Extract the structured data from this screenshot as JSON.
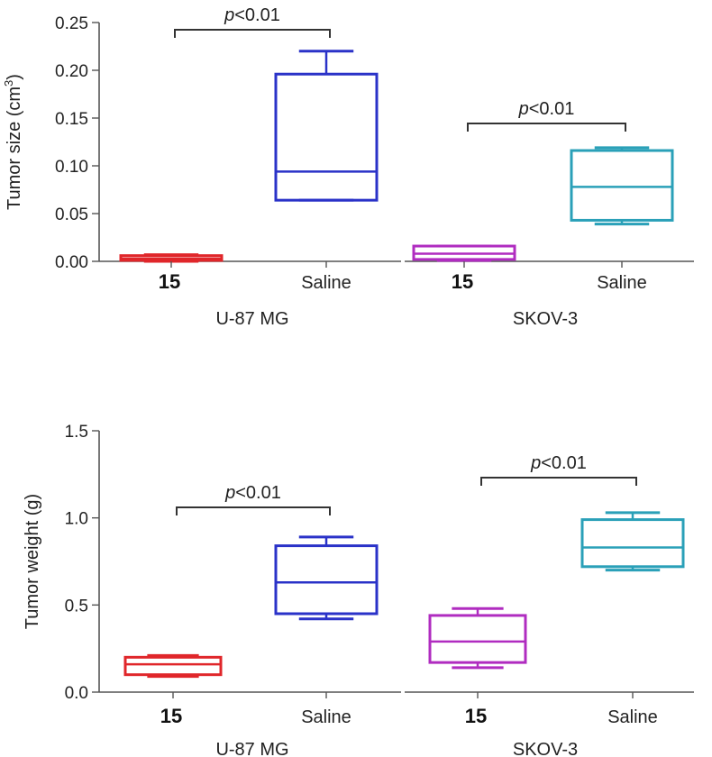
{
  "chart_data": [
    {
      "type": "box",
      "title": "",
      "ylabel": "Tumor size (cm3)",
      "ylabel_main": "Tumor size (cm",
      "ylabel_sup": "3",
      "ylabel_close": ")",
      "ylim": [
        0,
        0.25
      ],
      "yticks": [
        "0.00",
        "0.05",
        "0.10",
        "0.15",
        "0.20",
        "0.25"
      ],
      "groups": [
        {
          "name": "U-87 MG",
          "pvalue": "p<0.01",
          "boxes": [
            {
              "label": "15",
              "bold": true,
              "color": "#e0262a",
              "min": 0.0,
              "q1": 0.001,
              "median": 0.003,
              "q3": 0.006,
              "max": 0.007
            },
            {
              "label": "Saline",
              "bold": false,
              "color": "#2a32c8",
              "min": 0.064,
              "q1": 0.064,
              "median": 0.094,
              "q3": 0.196,
              "max": 0.22
            }
          ]
        },
        {
          "name": "SKOV-3",
          "pvalue": "p<0.01",
          "boxes": [
            {
              "label": "15",
              "bold": true,
              "color": "#b02cc0",
              "min": 0.001,
              "q1": 0.002,
              "median": 0.008,
              "q3": 0.016,
              "max": 0.016
            },
            {
              "label": "Saline",
              "bold": false,
              "color": "#2aa0b8",
              "min": 0.039,
              "q1": 0.043,
              "median": 0.078,
              "q3": 0.116,
              "max": 0.119
            }
          ]
        }
      ]
    },
    {
      "type": "box",
      "title": "",
      "ylabel": "Tumor weight (g)",
      "ylim": [
        0,
        1.5
      ],
      "yticks": [
        "0.0",
        "0.5",
        "1.0",
        "1.5"
      ],
      "groups": [
        {
          "name": "U-87 MG",
          "pvalue": "p<0.01",
          "boxes": [
            {
              "label": "15",
              "bold": true,
              "color": "#e0262a",
              "min": 0.09,
              "q1": 0.1,
              "median": 0.16,
              "q3": 0.2,
              "max": 0.21
            },
            {
              "label": "Saline",
              "bold": false,
              "color": "#2a32c8",
              "min": 0.42,
              "q1": 0.45,
              "median": 0.63,
              "q3": 0.84,
              "max": 0.89
            }
          ]
        },
        {
          "name": "SKOV-3",
          "pvalue": "p<0.01",
          "boxes": [
            {
              "label": "15",
              "bold": true,
              "color": "#b02cc0",
              "min": 0.14,
              "q1": 0.17,
              "median": 0.29,
              "q3": 0.44,
              "max": 0.48
            },
            {
              "label": "Saline",
              "bold": false,
              "color": "#2aa0b8",
              "min": 0.7,
              "q1": 0.72,
              "median": 0.83,
              "q3": 0.99,
              "max": 1.03
            }
          ]
        }
      ]
    }
  ]
}
